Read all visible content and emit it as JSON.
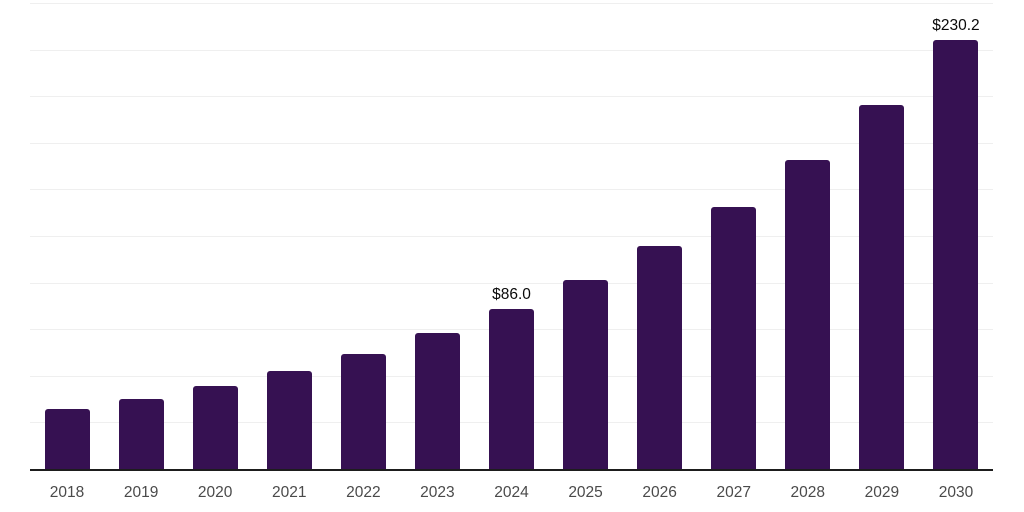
{
  "chart_data": {
    "type": "bar",
    "title": "",
    "xlabel": "",
    "ylabel": "",
    "categories": [
      "2018",
      "2019",
      "2020",
      "2021",
      "2022",
      "2023",
      "2024",
      "2025",
      "2026",
      "2027",
      "2028",
      "2029",
      "2030"
    ],
    "values": [
      32.1,
      37.8,
      44.5,
      52.5,
      61.9,
      73.0,
      86.0,
      101.3,
      119.4,
      140.6,
      165.7,
      195.2,
      230.2
    ],
    "data_labels": [
      "",
      "",
      "",
      "",
      "",
      "",
      "$86.0",
      "",
      "",
      "",
      "",
      "",
      "$230.2"
    ],
    "ylim": [
      0,
      250
    ],
    "gridline_step": 25,
    "grid": true,
    "legend": false,
    "y_tick_labels_shown": false,
    "colors": {
      "bar": "#361152",
      "grid": "#efefef",
      "axis": "#1d1d1d",
      "tick_label": "#4a4a4a",
      "data_label": "#0a0a0a",
      "background": "#ffffff"
    }
  }
}
